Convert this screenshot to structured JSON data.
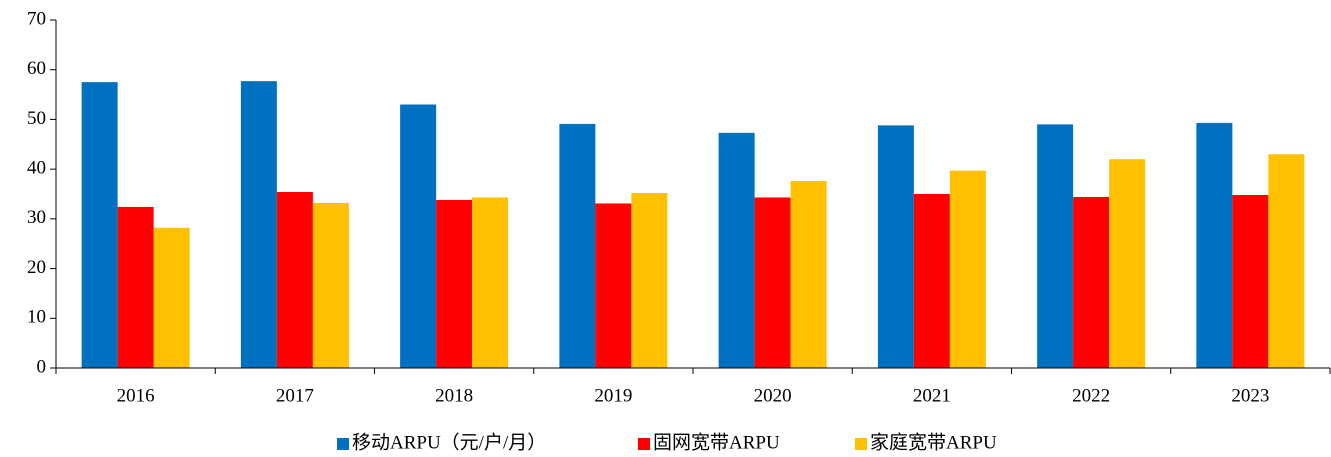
{
  "chart_data": {
    "type": "bar",
    "categories": [
      "2016",
      "2017",
      "2018",
      "2019",
      "2020",
      "2021",
      "2022",
      "2023"
    ],
    "series": [
      {
        "name": "移动ARPU（元/户/月）",
        "color": "#0070c0",
        "values": [
          57.5,
          57.7,
          53.0,
          49.1,
          47.3,
          48.8,
          49.0,
          49.3
        ]
      },
      {
        "name": "固网宽带ARPU",
        "color": "#ff0000",
        "values": [
          32.4,
          35.4,
          33.8,
          33.1,
          34.3,
          35.0,
          34.4,
          34.8
        ]
      },
      {
        "name": "家庭宽带ARPU",
        "color": "#ffc000",
        "values": [
          28.2,
          33.2,
          34.3,
          35.2,
          37.6,
          39.7,
          42.0,
          43.0
        ]
      }
    ],
    "ylim": [
      0,
      70
    ],
    "yticks": [
      0,
      10,
      20,
      30,
      40,
      50,
      60,
      70
    ],
    "legend": "bottom"
  }
}
